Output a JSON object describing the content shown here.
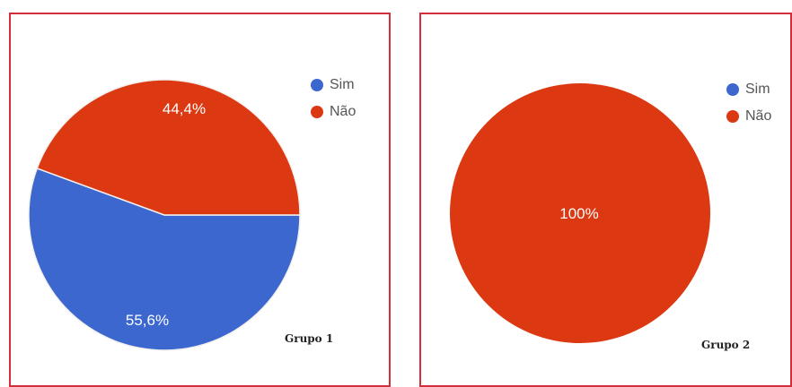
{
  "chart_data": [
    {
      "type": "pie",
      "categories": [
        "Sim",
        "Não"
      ],
      "values": [
        55.6,
        44.4
      ],
      "data_labels": [
        "55,6%",
        "44,4%"
      ],
      "colors": [
        "#3b67cf",
        "#dc3912"
      ],
      "legend": [
        "Sim",
        "Não"
      ],
      "legend_position": "top-right",
      "caption": "Grupo 1"
    },
    {
      "type": "pie",
      "categories": [
        "Sim",
        "Não"
      ],
      "values": [
        0,
        100
      ],
      "data_labels": [
        "",
        "100%"
      ],
      "colors": [
        "#3b67cf",
        "#dc3912"
      ],
      "legend": [
        "Sim",
        "Não"
      ],
      "legend_position": "top-right",
      "caption": "Grupo 2"
    }
  ]
}
